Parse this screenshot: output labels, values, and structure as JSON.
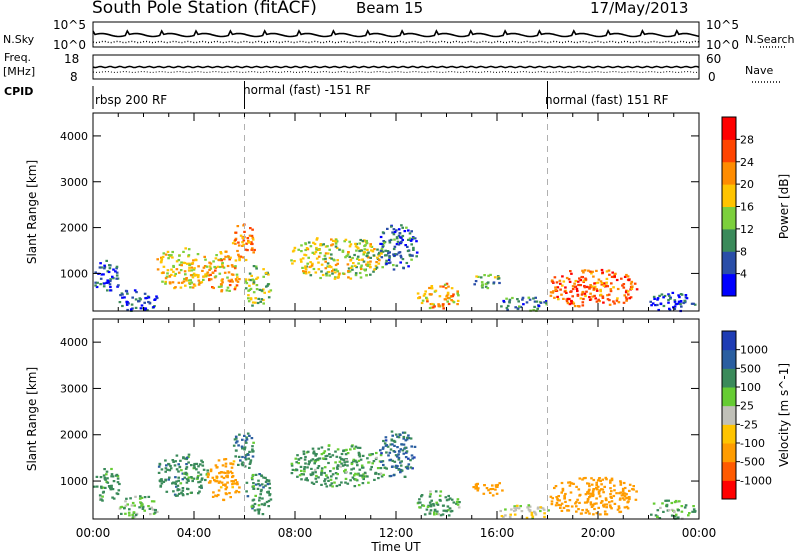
{
  "header": {
    "title": "South Pole Station (fitACF)",
    "beam": "Beam 15",
    "date": "17/May/2013"
  },
  "side_labels": {
    "nsky": "N.Sky",
    "nsearch": "N.Search",
    "freq": "Freq.",
    "freq_unit": "[MHz]",
    "nave": "Nave",
    "cpid": "CPID"
  },
  "small_axes": {
    "noise_left_top": "10^5",
    "noise_left_bottom": "10^0",
    "noise_right_top": "10^5",
    "noise_right_bottom": "10^0",
    "freq_left_top": "18",
    "freq_left_bottom": "8",
    "nave_right_top": "60",
    "nave_right_bottom": "0"
  },
  "cpid_segments": [
    {
      "label": "rbsp 200 RF",
      "start_hr": 0
    },
    {
      "label": "normal (fast) -151 RF",
      "start_hr": 6
    },
    {
      "label": "normal (fast) 151 RF",
      "start_hr": 18
    }
  ],
  "colors": {
    "power_scale": [
      "#0000ff",
      "#2a4ea8",
      "#3a8a5a",
      "#7ccf3c",
      "#ffc400",
      "#ff8c00",
      "#ff4400",
      "#ff0000"
    ],
    "velocity_scale": [
      "#ff0000",
      "#ff5a00",
      "#ff9c00",
      "#ffc400",
      "#c0c0b8",
      "#66cc33",
      "#3a8a5a",
      "#2a5ea0",
      "#1e3cb4"
    ]
  },
  "chart_data": [
    {
      "type": "heatmap",
      "name": "power",
      "xlabel": "Time UT",
      "ylabel": "Slant Range [km]",
      "colorbar_label": "Power [dB]",
      "xlim": [
        0,
        24
      ],
      "ylim": [
        180,
        4500
      ],
      "x_ticks": [
        "00:00",
        "04:00",
        "08:00",
        "12:00",
        "16:00",
        "20:00",
        "00:00"
      ],
      "y_ticks": [
        "1000",
        "2000",
        "3000",
        "4000"
      ],
      "colorbar_ticks": [
        "4",
        "8",
        "12",
        "16",
        "20",
        "24",
        "28"
      ],
      "echo_regions": [
        {
          "t0": 0.0,
          "t1": 1.0,
          "r0": 600,
          "r1": 1300,
          "value": 6
        },
        {
          "t0": 1.0,
          "t1": 2.5,
          "r0": 200,
          "r1": 700,
          "value": 5
        },
        {
          "t0": 2.5,
          "t1": 4.5,
          "r0": 700,
          "r1": 1600,
          "value": 18
        },
        {
          "t0": 4.5,
          "t1": 5.8,
          "r0": 600,
          "r1": 1500,
          "value": 20
        },
        {
          "t0": 5.5,
          "t1": 6.4,
          "r0": 1300,
          "r1": 2100,
          "value": 22
        },
        {
          "t0": 6.0,
          "t1": 7.0,
          "r0": 300,
          "r1": 1200,
          "value": 14
        },
        {
          "t0": 7.8,
          "t1": 11.5,
          "r0": 900,
          "r1": 1800,
          "value": 16
        },
        {
          "t0": 11.3,
          "t1": 12.8,
          "r0": 1100,
          "r1": 2100,
          "value": 7
        },
        {
          "t0": 12.8,
          "t1": 14.5,
          "r0": 250,
          "r1": 800,
          "value": 20
        },
        {
          "t0": 15.0,
          "t1": 16.3,
          "r0": 700,
          "r1": 1000,
          "value": 12
        },
        {
          "t0": 16.0,
          "t1": 18.0,
          "r0": 200,
          "r1": 500,
          "value": 9
        },
        {
          "t0": 18.0,
          "t1": 21.5,
          "r0": 300,
          "r1": 1100,
          "value": 24
        },
        {
          "t0": 22.0,
          "t1": 23.8,
          "r0": 200,
          "r1": 600,
          "value": 5
        }
      ]
    },
    {
      "type": "heatmap",
      "name": "velocity",
      "xlabel": "Time UT",
      "ylabel": "Slant Range [km]",
      "colorbar_label": "Velocity [m s^-1]",
      "xlim": [
        0,
        24
      ],
      "ylim": [
        180,
        4500
      ],
      "x_ticks": [
        "00:00",
        "04:00",
        "08:00",
        "12:00",
        "16:00",
        "20:00",
        "00:00"
      ],
      "y_ticks": [
        "1000",
        "2000",
        "3000",
        "4000"
      ],
      "colorbar_ticks": [
        "1000",
        "500",
        "100",
        "25",
        "-25",
        "-100",
        "-500",
        "-1000"
      ],
      "echo_regions": [
        {
          "t0": 0.0,
          "t1": 1.0,
          "r0": 600,
          "r1": 1300,
          "value": 200
        },
        {
          "t0": 1.0,
          "t1": 2.5,
          "r0": 200,
          "r1": 700,
          "value": 100
        },
        {
          "t0": 2.5,
          "t1": 4.5,
          "r0": 700,
          "r1": 1600,
          "value": 300
        },
        {
          "t0": 4.5,
          "t1": 5.8,
          "r0": 600,
          "r1": 1500,
          "value": -150
        },
        {
          "t0": 5.5,
          "t1": 6.4,
          "r0": 1300,
          "r1": 2100,
          "value": 400
        },
        {
          "t0": 6.0,
          "t1": 7.0,
          "r0": 300,
          "r1": 1200,
          "value": 300
        },
        {
          "t0": 7.8,
          "t1": 11.5,
          "r0": 900,
          "r1": 1800,
          "value": 150
        },
        {
          "t0": 11.3,
          "t1": 12.8,
          "r0": 1100,
          "r1": 2100,
          "value": 600
        },
        {
          "t0": 12.8,
          "t1": 14.5,
          "r0": 250,
          "r1": 800,
          "value": 150
        },
        {
          "t0": 15.0,
          "t1": 16.3,
          "r0": 700,
          "r1": 1000,
          "value": -200
        },
        {
          "t0": 16.0,
          "t1": 18.0,
          "r0": 200,
          "r1": 500,
          "value": 0
        },
        {
          "t0": 18.0,
          "t1": 21.5,
          "r0": 300,
          "r1": 1100,
          "value": -200
        },
        {
          "t0": 22.0,
          "t1": 23.8,
          "r0": 200,
          "r1": 600,
          "value": 100
        }
      ]
    }
  ]
}
